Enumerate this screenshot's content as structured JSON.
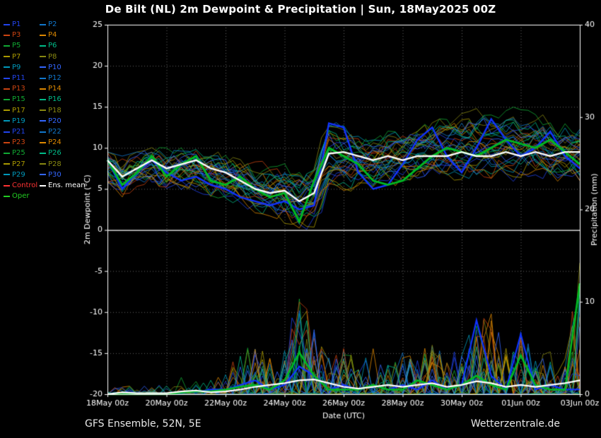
{
  "title": "De Bilt  (NL)  2m Dewpoint & Precipitation | Sun, 18May2025 00Z",
  "footer": {
    "left": "GFS Ensemble, 52N, 5E",
    "right": "Wetterzentrale.de"
  },
  "legend": {
    "col1": [
      {
        "label": "P1",
        "color": "#2244ee"
      },
      {
        "label": "P3",
        "color": "#cc4411"
      },
      {
        "label": "P5",
        "color": "#11aa33"
      },
      {
        "label": "P7",
        "color": "#aa9900"
      },
      {
        "label": "P9",
        "color": "#0099bb"
      },
      {
        "label": "P11",
        "color": "#2244ee"
      },
      {
        "label": "P13",
        "color": "#cc4411"
      },
      {
        "label": "P15",
        "color": "#11aa33"
      },
      {
        "label": "P17",
        "color": "#aa9900"
      },
      {
        "label": "P19",
        "color": "#0099bb"
      },
      {
        "label": "P21",
        "color": "#2244ee"
      },
      {
        "label": "P23",
        "color": "#cc4411"
      },
      {
        "label": "P25",
        "color": "#11aa33"
      },
      {
        "label": "P27",
        "color": "#aa9900"
      },
      {
        "label": "P29",
        "color": "#0099bb"
      },
      {
        "label": "Control",
        "color": "#ff3333"
      },
      {
        "label": "Oper",
        "color": "#22cc22"
      }
    ],
    "col2": [
      {
        "label": "P2",
        "color": "#1177cc"
      },
      {
        "label": "P4",
        "color": "#dd8800"
      },
      {
        "label": "P6",
        "color": "#00bb88"
      },
      {
        "label": "P8",
        "color": "#888811"
      },
      {
        "label": "P10",
        "color": "#3366ff"
      },
      {
        "label": "P12",
        "color": "#1177cc"
      },
      {
        "label": "P14",
        "color": "#dd8800"
      },
      {
        "label": "P16",
        "color": "#00bb88"
      },
      {
        "label": "P18",
        "color": "#888811"
      },
      {
        "label": "P20",
        "color": "#3366ff"
      },
      {
        "label": "P22",
        "color": "#1177cc"
      },
      {
        "label": "P24",
        "color": "#dd8800"
      },
      {
        "label": "P26",
        "color": "#00bb88"
      },
      {
        "label": "P28",
        "color": "#888811"
      },
      {
        "label": "P30",
        "color": "#3366ff"
      },
      {
        "label": "Ens. mean",
        "color": "#ffffff"
      }
    ]
  },
  "chart_data": {
    "type": "line",
    "title": "De Bilt  (NL)  2m Dewpoint & Precipitation | Sun, 18May2025 00Z",
    "xlabel": "Date (UTC)",
    "x_ticks": [
      "18May 00z",
      "20May 00z",
      "22May 00z",
      "24May 00z",
      "26May 00z",
      "28May 00z",
      "30May 00z",
      "01Jun 00z",
      "03Jun 00z"
    ],
    "x_tick_interval_days": 2,
    "time_days": 16,
    "step_days": 0.5,
    "y_left": {
      "label": "2m Dewpoint (°C)",
      "min": -20,
      "max": 25,
      "ticks": [
        25,
        20,
        15,
        10,
        5,
        0,
        -5,
        -10,
        -15,
        -20
      ]
    },
    "y_right": {
      "label": "Precipitation (mm)",
      "min": 0,
      "max": 40,
      "ticks": [
        40,
        30,
        20,
        10,
        0
      ]
    },
    "grid": true,
    "legend_position": "top-left",
    "members": {
      "count": 30,
      "labels": [
        "P1",
        "P2",
        "P3",
        "P4",
        "P5",
        "P6",
        "P7",
        "P8",
        "P9",
        "P10",
        "P11",
        "P12",
        "P13",
        "P14",
        "P15",
        "P16",
        "P17",
        "P18",
        "P19",
        "P20",
        "P21",
        "P22",
        "P23",
        "P24",
        "P25",
        "P26",
        "P27",
        "P28",
        "P29",
        "P30"
      ]
    },
    "palette": [
      "#2244ee",
      "#1177cc",
      "#cc4411",
      "#dd8800",
      "#11aa33",
      "#00bb88",
      "#aa9900",
      "#888811",
      "#0099bb",
      "#3366ff"
    ],
    "colors": {
      "mean": "#ffffff",
      "control": "#1133ff",
      "oper": "#00bb22",
      "axis": "#ffffff",
      "grid": "#666666",
      "background": "#000000",
      "zero_line": "#ffffff"
    },
    "series": {
      "ens_mean_dewpoint": [
        8.5,
        6.5,
        7.5,
        8.5,
        7.5,
        8,
        8.5,
        7.5,
        7,
        6,
        5,
        4.5,
        4.8,
        3.5,
        4.5,
        9.3,
        9.5,
        9,
        8.5,
        9,
        8.5,
        9,
        9,
        9,
        9.5,
        9,
        9,
        9.5,
        9,
        9.5,
        9,
        9.5,
        9.5
      ],
      "control_dewpoint": [
        8.5,
        5,
        7,
        8.5,
        7,
        6,
        6.5,
        5.5,
        5,
        4,
        3.5,
        3,
        3.5,
        2.5,
        3,
        13,
        12.5,
        7,
        5,
        5.5,
        8,
        11,
        12.5,
        9,
        7,
        10,
        13.5,
        11,
        9,
        10,
        12,
        9,
        7.5
      ],
      "oper_dewpoint": [
        8.5,
        5.5,
        7,
        9,
        6.5,
        8,
        9,
        6,
        5.5,
        6.5,
        5,
        4,
        4.5,
        1,
        6,
        10,
        9,
        8,
        6,
        5.5,
        6,
        7.5,
        9,
        10,
        9.5,
        9,
        10,
        11,
        10.5,
        10,
        11,
        9.5,
        8
      ],
      "spread_min": [
        5,
        4,
        4.5,
        5,
        4.5,
        4,
        4,
        3.5,
        3,
        2.5,
        1.5,
        0.5,
        -0.5,
        -1.5,
        -2,
        0.5,
        2,
        3.5,
        4,
        4,
        4,
        4.5,
        5,
        5,
        5,
        4.5,
        4,
        5,
        5,
        5,
        5,
        4.5,
        4
      ],
      "spread_max": [
        9.5,
        9,
        9.5,
        10.5,
        10,
        10.5,
        10.5,
        10,
        9.5,
        9.5,
        9,
        9,
        9.5,
        9,
        10,
        16.5,
        14,
        13,
        13,
        13.5,
        14,
        15,
        15.5,
        16,
        16.5,
        17,
        17.5,
        17,
        16.5,
        16,
        15.5,
        15,
        14.5
      ],
      "ens_mean_precip": [
        0,
        0.2,
        0.1,
        0.1,
        0.1,
        0.3,
        0.4,
        0.2,
        0.3,
        0.5,
        0.8,
        1,
        1.2,
        1.5,
        1.6,
        1.2,
        0.8,
        0.6,
        0.8,
        1,
        0.8,
        1,
        1.2,
        0.8,
        1,
        1.4,
        1.2,
        0.8,
        1,
        0.8,
        1,
        1.2,
        1.5
      ],
      "control_precip": [
        0,
        0,
        0,
        0,
        0,
        0.3,
        0.2,
        0.5,
        0.5,
        1,
        1.5,
        0.5,
        1,
        3,
        2,
        0.5,
        1,
        0.5,
        1,
        0.5,
        1,
        0.5,
        1.5,
        0.5,
        1,
        8,
        2,
        0.5,
        6.5,
        0.5,
        1,
        0.5,
        0.5
      ],
      "oper_precip": [
        0,
        0,
        0,
        0,
        0,
        0.2,
        0.3,
        0.3,
        0.5,
        0.8,
        1,
        0.5,
        1.5,
        4.5,
        2,
        0.5,
        0.5,
        0.5,
        1,
        0.5,
        0.5,
        1.5,
        1,
        0.5,
        1,
        2,
        1,
        0.5,
        4.2,
        1,
        0.5,
        0.5,
        12
      ],
      "precip_max": [
        0.5,
        1,
        0.8,
        1,
        1,
        2,
        1.5,
        2,
        3.5,
        4.5,
        6,
        4,
        5,
        12,
        8,
        4,
        5,
        4,
        5,
        3.5,
        5,
        4,
        6,
        4.5,
        5,
        8,
        9,
        5,
        7,
        4,
        5,
        4,
        15
      ]
    }
  }
}
